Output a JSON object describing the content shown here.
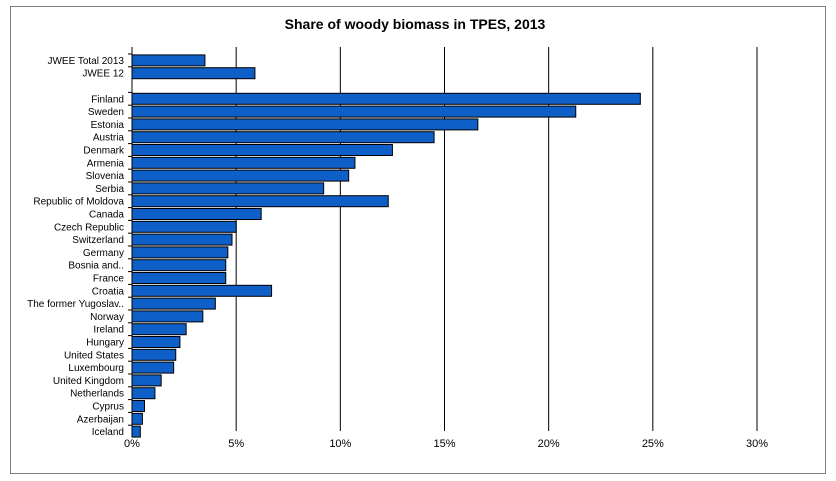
{
  "chart_data": {
    "type": "bar",
    "orientation": "horizontal",
    "title": "Share of woody biomass in TPES, 2013",
    "xlabel": "",
    "ylabel": "",
    "xlim": [
      0,
      30
    ],
    "x_ticks": [
      "0%",
      "5%",
      "10%",
      "15%",
      "20%",
      "25%",
      "30%"
    ],
    "grid": true,
    "legend": "none",
    "bar_color": "#0f5fc8",
    "groups": [
      {
        "categories": [
          "JWEE Total 2013",
          "JWEE 12"
        ],
        "values": [
          3.5,
          5.9
        ]
      },
      {
        "categories": [
          "Finland",
          "Sweden",
          "Estonia",
          "Austria",
          "Denmark",
          "Armenia",
          "Slovenia",
          "Serbia",
          "Republic of Moldova",
          "Canada",
          "Czech Republic",
          "Switzerland",
          "Germany",
          "Bosnia and..",
          "France",
          "Croatia",
          "The former Yugoslav..",
          "Norway",
          "Ireland",
          "Hungary",
          "United States",
          "Luxembourg",
          "United Kingdom",
          "Netherlands",
          "Cyprus",
          "Azerbaijan",
          "Iceland"
        ],
        "values": [
          24.4,
          21.3,
          16.6,
          14.5,
          12.5,
          10.7,
          10.4,
          9.2,
          12.3,
          6.2,
          5.0,
          4.8,
          4.6,
          4.5,
          4.5,
          6.7,
          4.0,
          3.4,
          2.6,
          2.3,
          2.1,
          2.0,
          1.4,
          1.1,
          0.6,
          0.5,
          0.4
        ]
      }
    ]
  }
}
